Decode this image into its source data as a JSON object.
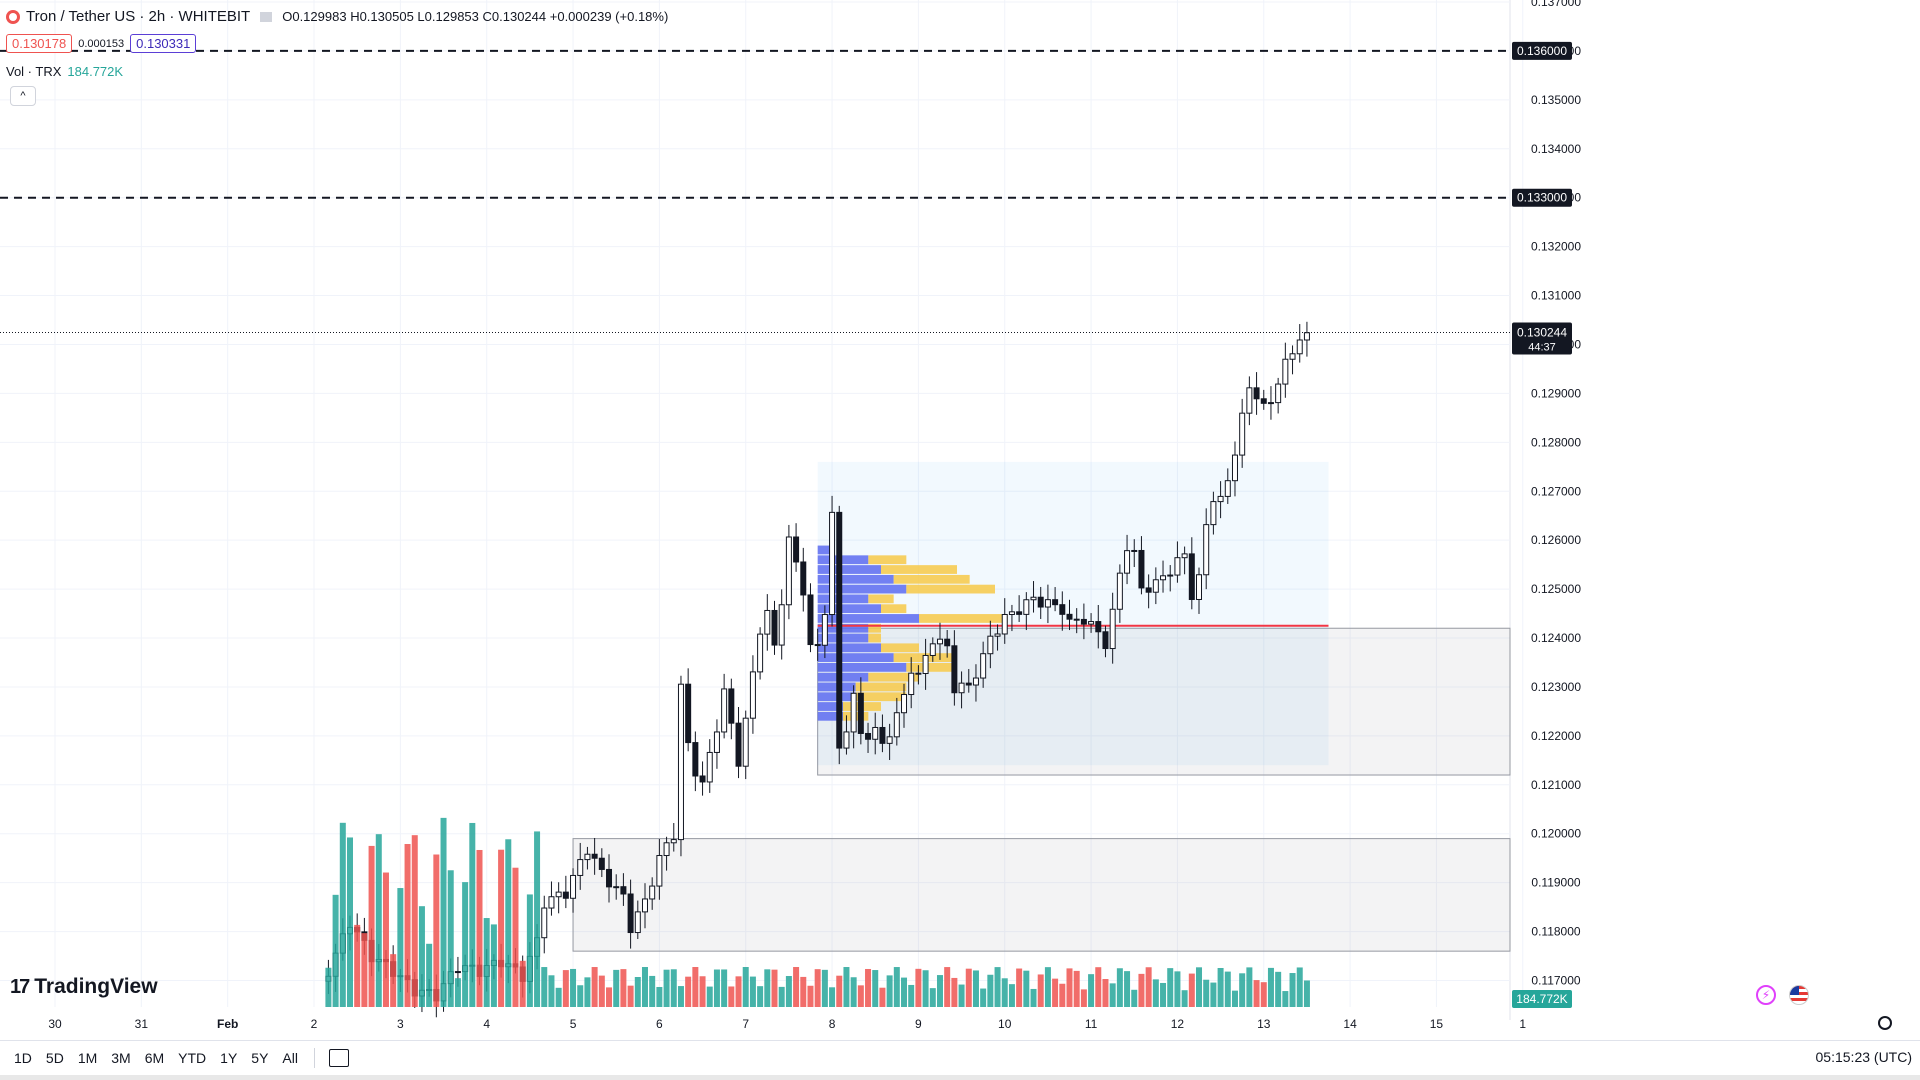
{
  "header": {
    "symbol_title": "Tron / Tether US · 2h · WHITEBIT",
    "open": "0.129983",
    "high": "0.130505",
    "low": "0.129853",
    "close": "0.130244",
    "change": "+0.000239 (+0.18%)",
    "bid": "0.130178",
    "spread": "0.000153",
    "ask": "0.130331",
    "volume_label": "Vol · TRX",
    "volume_value": "184.772K",
    "collapse_glyph": "^"
  },
  "timeframes": [
    "1D",
    "5D",
    "1M",
    "3M",
    "6M",
    "YTD",
    "1Y",
    "5Y",
    "All"
  ],
  "clock": "05:15:23 (UTC)",
  "logo_text": "TradingView",
  "icons": {
    "symbol": "tron-symbol-icon",
    "calendar": "calendar-range-icon",
    "settings": "gear-icon",
    "flash": "flash-icon",
    "flag": "us-flag-icon",
    "logo": "tradingview-logo-icon"
  },
  "colors": {
    "up": "#ffffff",
    "down": "#131722",
    "vol_up": "#26a69a",
    "vol_down": "#ef5350",
    "poc": "#f23645",
    "vp_blue": "#5c6bf0",
    "vp_yellow": "#f7c948"
  },
  "chart_data": {
    "type": "candlestick",
    "symbol": "TRXUSDT",
    "exchange": "WHITEBIT",
    "interval": "2h",
    "ylim": [
      0.1165,
      0.137
    ],
    "y_ticks": [
      "0.117000",
      "0.118000",
      "0.119000",
      "0.120000",
      "0.121000",
      "0.122000",
      "0.123000",
      "0.124000",
      "0.125000",
      "0.126000",
      "0.127000",
      "0.128000",
      "0.129000",
      "0.130000",
      "0.131000",
      "0.132000",
      "0.133000",
      "0.134000",
      "0.135000",
      "0.136000",
      "0.137000"
    ],
    "x_ticks": [
      {
        "label": "30",
        "x": 0.0
      },
      {
        "label": "31",
        "x": 12.0
      },
      {
        "label": "Feb",
        "x": 24.0
      },
      {
        "label": "2",
        "x": 36.0
      },
      {
        "label": "3",
        "x": 48.0
      },
      {
        "label": "4",
        "x": 60.0
      },
      {
        "label": "5",
        "x": 72.0
      },
      {
        "label": "6",
        "x": 84.0
      },
      {
        "label": "7",
        "x": 96.0
      },
      {
        "label": "8",
        "x": 108.0
      },
      {
        "label": "9",
        "x": 120.0
      },
      {
        "label": "10",
        "x": 132.0
      },
      {
        "label": "11",
        "x": 144.0
      },
      {
        "label": "12",
        "x": 156.0
      },
      {
        "label": "13",
        "x": 168.0
      },
      {
        "label": "14",
        "x": 180.0
      },
      {
        "label": "15",
        "x": 192.0
      },
      {
        "label": "1",
        "x": 204.0
      }
    ],
    "candle_start_index": 38,
    "anchors": [
      [
        38,
        0.1172
      ],
      [
        41,
        0.1182
      ],
      [
        44,
        0.1175
      ],
      [
        47,
        0.1172
      ],
      [
        50,
        0.1168
      ],
      [
        53,
        0.1167
      ],
      [
        56,
        0.1173
      ],
      [
        59,
        0.1172
      ],
      [
        62,
        0.1174
      ],
      [
        65,
        0.1171
      ],
      [
        67,
        0.1178
      ],
      [
        68,
        0.1186
      ],
      [
        71,
        0.1188
      ],
      [
        73,
        0.1194
      ],
      [
        74,
        0.1197
      ],
      [
        76,
        0.1192
      ],
      [
        79,
        0.1187
      ],
      [
        80,
        0.1181
      ],
      [
        82,
        0.1186
      ],
      [
        84,
        0.1195
      ],
      [
        86,
        0.12
      ],
      [
        87,
        0.123
      ],
      [
        88,
        0.1218
      ],
      [
        89,
        0.1213
      ],
      [
        90,
        0.121
      ],
      [
        92,
        0.1222
      ],
      [
        93,
        0.1229
      ],
      [
        95,
        0.1215
      ],
      [
        96,
        0.1223
      ],
      [
        98,
        0.1242
      ],
      [
        99,
        0.1245
      ],
      [
        100,
        0.1238
      ],
      [
        101,
        0.1248
      ],
      [
        102,
        0.126
      ],
      [
        103,
        0.1255
      ],
      [
        104,
        0.125
      ],
      [
        105,
        0.1238
      ],
      [
        106,
        0.1238
      ],
      [
        107,
        0.1246
      ],
      [
        108,
        0.1265
      ],
      [
        109,
        0.1217
      ],
      [
        110,
        0.1222
      ],
      [
        111,
        0.1228
      ],
      [
        112,
        0.122
      ],
      [
        114,
        0.1221
      ],
      [
        115,
        0.1218
      ],
      [
        117,
        0.1224
      ],
      [
        118,
        0.1228
      ],
      [
        119,
        0.1234
      ],
      [
        120,
        0.1232
      ],
      [
        121,
        0.1236
      ],
      [
        122,
        0.124
      ],
      [
        124,
        0.1238
      ],
      [
        125,
        0.123
      ],
      [
        127,
        0.123
      ],
      [
        129,
        0.1236
      ],
      [
        130,
        0.124
      ],
      [
        132,
        0.1244
      ],
      [
        134,
        0.1246
      ],
      [
        136,
        0.1248
      ],
      [
        138,
        0.1247
      ],
      [
        140,
        0.1246
      ],
      [
        141,
        0.1243
      ],
      [
        143,
        0.1244
      ],
      [
        145,
        0.1241
      ],
      [
        146,
        0.1239
      ],
      [
        147,
        0.1245
      ],
      [
        148,
        0.1253
      ],
      [
        149,
        0.1259
      ],
      [
        150,
        0.1257
      ],
      [
        151,
        0.125
      ],
      [
        153,
        0.1251
      ],
      [
        155,
        0.1254
      ],
      [
        157,
        0.1257
      ],
      [
        158,
        0.1249
      ],
      [
        159,
        0.1252
      ],
      [
        160,
        0.1263
      ],
      [
        161,
        0.1269
      ],
      [
        162,
        0.1268
      ],
      [
        163,
        0.1272
      ],
      [
        165,
        0.1285
      ],
      [
        166,
        0.1291
      ],
      [
        167,
        0.129
      ],
      [
        168,
        0.1287
      ],
      [
        169,
        0.1288
      ],
      [
        170,
        0.1293
      ],
      [
        171,
        0.1296
      ],
      [
        172,
        0.1298
      ],
      [
        173,
        0.1302
      ],
      [
        174,
        0.13024
      ]
    ],
    "last_price": "0.130244",
    "countdown": "44:37",
    "horizontal_lines": [
      {
        "price": 0.136,
        "label": "0.136000",
        "style": "dashed"
      },
      {
        "price": 0.133,
        "label": "0.133000",
        "style": "dashed"
      }
    ],
    "zones": [
      {
        "from_x": 72.0,
        "to_x": 212.0,
        "low": 0.1176,
        "high": 0.1199
      },
      {
        "from_x": 106.0,
        "to_x": 212.0,
        "low": 0.1212,
        "high": 0.1242
      }
    ],
    "volume_profile": {
      "from_x": 106.0,
      "to_x": 177.0,
      "low": 0.1214,
      "high": 0.1276,
      "poc": 0.12425,
      "rows": [
        {
          "price": 0.1258,
          "buy": 1,
          "sell": 0
        },
        {
          "price": 0.1256,
          "buy": 4,
          "sell": 3
        },
        {
          "price": 0.1254,
          "buy": 5,
          "sell": 6
        },
        {
          "price": 0.1252,
          "buy": 6,
          "sell": 6
        },
        {
          "price": 0.125,
          "buy": 7,
          "sell": 7
        },
        {
          "price": 0.1248,
          "buy": 4,
          "sell": 2
        },
        {
          "price": 0.1246,
          "buy": 5,
          "sell": 2
        },
        {
          "price": 0.1244,
          "buy": 8,
          "sell": 7
        },
        {
          "price": 0.1242,
          "buy": 4,
          "sell": 1
        },
        {
          "price": 0.124,
          "buy": 4,
          "sell": 1
        },
        {
          "price": 0.1238,
          "buy": 5,
          "sell": 3
        },
        {
          "price": 0.1236,
          "buy": 6,
          "sell": 5
        },
        {
          "price": 0.1234,
          "buy": 7,
          "sell": 4
        },
        {
          "price": 0.1232,
          "buy": 4,
          "sell": 4
        },
        {
          "price": 0.123,
          "buy": 3,
          "sell": 4
        },
        {
          "price": 0.1228,
          "buy": 3,
          "sell": 4
        },
        {
          "price": 0.1226,
          "buy": 2,
          "sell": 3
        },
        {
          "price": 0.1224,
          "buy": 2,
          "sell": 2
        }
      ]
    }
  }
}
